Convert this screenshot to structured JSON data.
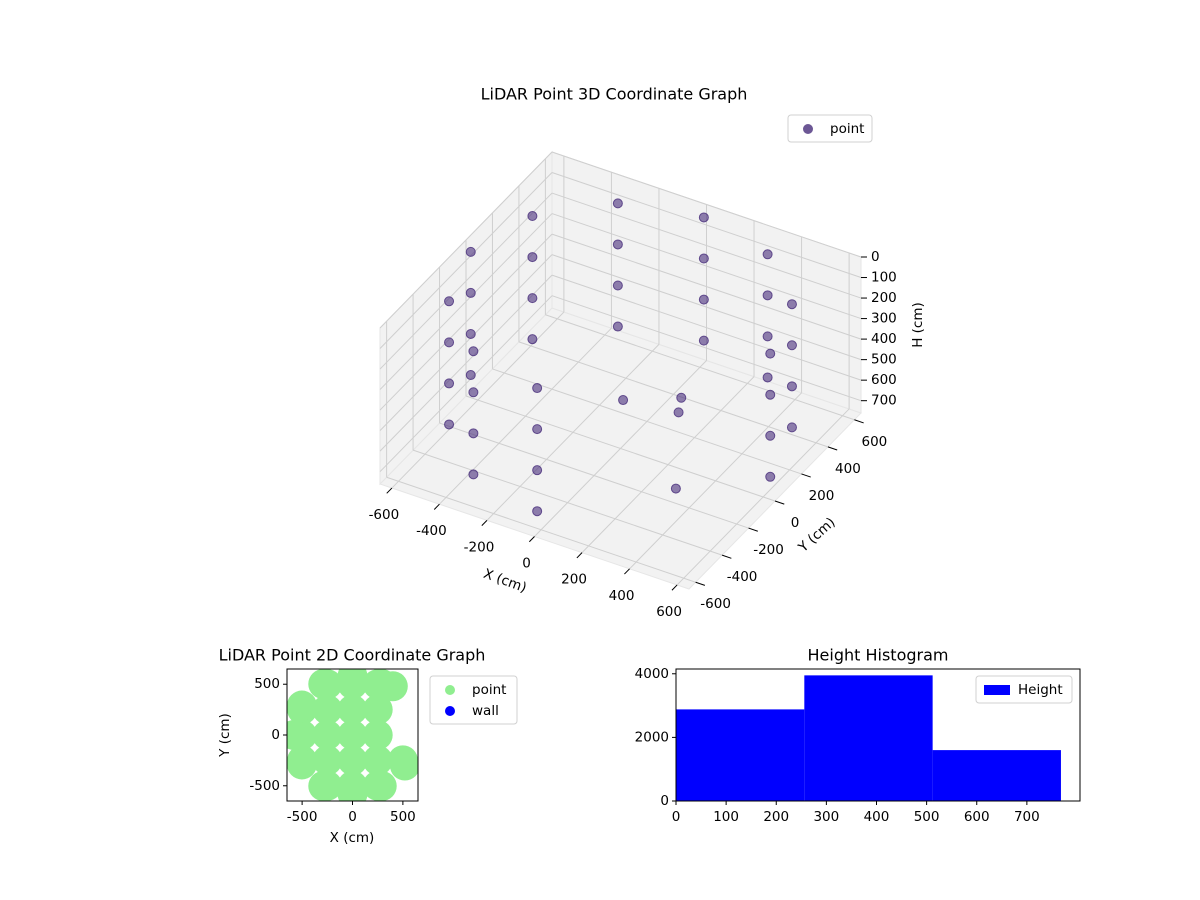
{
  "chart_data": [
    {
      "type": "scatter3d",
      "title": "LiDAR Point 3D Coordinate Graph",
      "xlabel": "X (cm)",
      "ylabel": "Y (cm)",
      "zlabel": "H (cm)",
      "xlim": [
        -650,
        650
      ],
      "ylim": [
        -650,
        650
      ],
      "zlim": [
        0,
        760
      ],
      "z_inverted": true,
      "xticks": [
        -600,
        -400,
        -200,
        0,
        200,
        400,
        600
      ],
      "yticks": [
        -600,
        -400,
        -200,
        0,
        200,
        400,
        600
      ],
      "zticks": [
        0,
        100,
        200,
        300,
        400,
        500,
        600,
        700
      ],
      "grid": true,
      "legend": "upper right",
      "series": [
        {
          "name": "point",
          "color": "#472d7b",
          "x": [
            630,
            630,
            630,
            630,
            546,
            546,
            546,
            546,
            315,
            315,
            315,
            315,
            0,
            0,
            0,
            0,
            -315,
            -315,
            -315,
            -315,
            -546,
            -546,
            -546,
            -546,
            -630,
            -630,
            -630,
            -630,
            -546,
            -546,
            -546,
            -546,
            -315,
            -315,
            -315,
            -315,
            0,
            0,
            0,
            0,
            300,
            200,
            400,
            150
          ],
          "y": [
            0,
            0,
            0,
            0,
            315,
            315,
            315,
            315,
            546,
            546,
            546,
            546,
            630,
            630,
            630,
            630,
            546,
            546,
            546,
            546,
            315,
            315,
            315,
            315,
            0,
            0,
            0,
            0,
            -315,
            -315,
            -315,
            -315,
            -546,
            -546,
            -546,
            -546,
            -630,
            -630,
            -630,
            -630,
            -100,
            100,
            -300,
            -250
          ],
          "z": [
            50,
            250,
            450,
            650,
            50,
            250,
            450,
            650,
            50,
            250,
            450,
            650,
            50,
            250,
            450,
            650,
            50,
            250,
            450,
            650,
            50,
            250,
            450,
            650,
            50,
            250,
            450,
            650,
            50,
            250,
            450,
            650,
            50,
            250,
            450,
            650,
            50,
            250,
            450,
            650,
            400,
            500,
            600,
            300
          ]
        }
      ]
    },
    {
      "type": "scatter",
      "title": "LiDAR Point 2D Coordinate Graph",
      "xlabel": "X (cm)",
      "ylabel": "Y (cm)",
      "xlim": [
        -650,
        650
      ],
      "ylim": [
        -650,
        650
      ],
      "xticks": [
        -500,
        0,
        500
      ],
      "yticks": [
        -500,
        0,
        500
      ],
      "legend": "outside right",
      "series": [
        {
          "name": "point",
          "color": "#90ee90",
          "x": [
            -500,
            -500,
            -500,
            -250,
            -250,
            -250,
            -250,
            -250,
            0,
            0,
            0,
            0,
            0,
            250,
            250,
            250,
            250,
            250,
            500,
            0,
            -290,
            -502,
            -580,
            -502,
            -290,
            0,
            290,
            290,
            520,
            400
          ],
          "y": [
            -250,
            0,
            250,
            -500,
            -250,
            0,
            250,
            500,
            -500,
            -250,
            0,
            250,
            500,
            -500,
            -250,
            0,
            250,
            500,
            -250,
            580,
            502,
            290,
            0,
            -290,
            -502,
            -580,
            -502,
            502,
            -300,
            480
          ]
        },
        {
          "name": "wall",
          "color": "#0000ff",
          "x": [],
          "y": []
        }
      ]
    },
    {
      "type": "histogram",
      "title": "Height Histogram",
      "bins": [
        0,
        256,
        512,
        768
      ],
      "xlim": [
        0,
        806
      ],
      "ylim": [
        0,
        4150
      ],
      "xticks": [
        0,
        100,
        200,
        300,
        400,
        500,
        600,
        700
      ],
      "yticks": [
        0,
        2000,
        4000
      ],
      "legend": "upper right",
      "series": [
        {
          "name": "Height",
          "color": "#0000ff",
          "values": [
            2880,
            3950,
            1600
          ]
        }
      ]
    }
  ]
}
